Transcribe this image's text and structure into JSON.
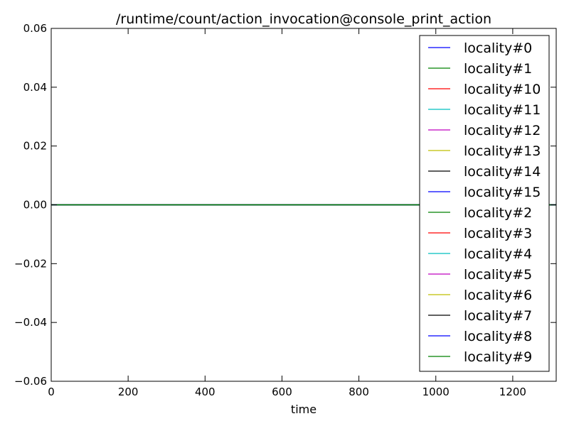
{
  "chart_data": {
    "type": "line",
    "title": "/runtime/count/action_invocation@console_print_action",
    "xlabel": "time",
    "ylabel": "",
    "xlim": [
      0,
      1313
    ],
    "ylim": [
      -0.06,
      0.06
    ],
    "x_ticks": [
      0,
      200,
      400,
      600,
      800,
      1000,
      1200
    ],
    "y_ticks": [
      0.06,
      0.04,
      0.02,
      0.0,
      -0.02,
      -0.04,
      -0.06
    ],
    "x_tick_labels": [
      "0",
      "200",
      "400",
      "600",
      "800",
      "1000",
      "1200"
    ],
    "y_tick_labels": [
      "0.06",
      "0.04",
      "0.02",
      "0.00",
      "−0.02",
      "−0.04",
      "−0.06"
    ],
    "grid": false,
    "legend_position": "top-right",
    "x": [
      0,
      1313
    ],
    "series": [
      {
        "name": "locality#0",
        "color": "#0000ff",
        "values": [
          0,
          0
        ]
      },
      {
        "name": "locality#1",
        "color": "#008000",
        "values": [
          0,
          0
        ]
      },
      {
        "name": "locality#10",
        "color": "#ff0000",
        "values": [
          0,
          0
        ]
      },
      {
        "name": "locality#11",
        "color": "#00bfbf",
        "values": [
          0,
          0
        ]
      },
      {
        "name": "locality#12",
        "color": "#bf00bf",
        "values": [
          0,
          0
        ]
      },
      {
        "name": "locality#13",
        "color": "#bfbf00",
        "values": [
          0,
          0
        ]
      },
      {
        "name": "locality#14",
        "color": "#000000",
        "values": [
          0,
          0
        ]
      },
      {
        "name": "locality#15",
        "color": "#0000ff",
        "values": [
          0,
          0
        ]
      },
      {
        "name": "locality#2",
        "color": "#008000",
        "values": [
          0,
          0
        ]
      },
      {
        "name": "locality#3",
        "color": "#ff0000",
        "values": [
          0,
          0
        ]
      },
      {
        "name": "locality#4",
        "color": "#00bfbf",
        "values": [
          0,
          0
        ]
      },
      {
        "name": "locality#5",
        "color": "#bf00bf",
        "values": [
          0,
          0
        ]
      },
      {
        "name": "locality#6",
        "color": "#bfbf00",
        "values": [
          0,
          0
        ]
      },
      {
        "name": "locality#7",
        "color": "#000000",
        "values": [
          0,
          0
        ]
      },
      {
        "name": "locality#8",
        "color": "#0000ff",
        "values": [
          0,
          0
        ]
      },
      {
        "name": "locality#9",
        "color": "#008000",
        "values": [
          0,
          0
        ]
      }
    ]
  }
}
